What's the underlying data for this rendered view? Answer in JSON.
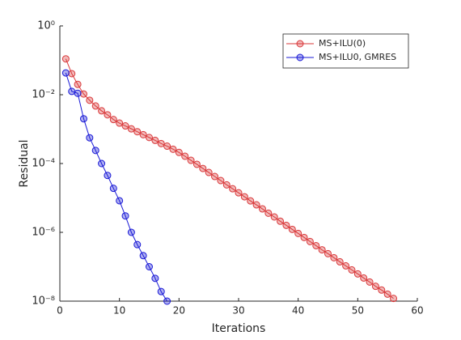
{
  "chart_data": {
    "type": "line",
    "xlabel": "Iterations",
    "ylabel": "Residual",
    "log_y": true,
    "xlim": [
      0,
      60
    ],
    "xticks": [
      0,
      10,
      20,
      30,
      40,
      50,
      60
    ],
    "ylim": [
      1e-08,
      1
    ],
    "yticks": [
      {
        "value": 1e-08,
        "label": "10⁻⁸"
      },
      {
        "value": 1e-06,
        "label": "10⁻⁶"
      },
      {
        "value": 0.0001,
        "label": "10⁻⁴"
      },
      {
        "value": 0.01,
        "label": "10⁻²"
      },
      {
        "value": 1,
        "label": "10⁰"
      }
    ],
    "legend": "northeast",
    "series": [
      {
        "name": "MS+ILU(0)",
        "color": "#d9383a",
        "x": [
          1,
          2,
          3,
          4,
          5,
          6,
          7,
          8,
          9,
          10,
          11,
          12,
          13,
          14,
          15,
          16,
          17,
          18,
          19,
          20,
          21,
          22,
          23,
          24,
          25,
          26,
          27,
          28,
          29,
          30,
          31,
          32,
          33,
          34,
          35,
          36,
          37,
          38,
          39,
          40,
          41,
          42,
          43,
          44,
          45,
          46,
          47,
          48,
          49,
          50,
          51,
          52,
          53,
          54,
          55,
          56
        ],
        "values": [
          0.11,
          0.041,
          0.02,
          0.0105,
          0.0069,
          0.0047,
          0.0034,
          0.0026,
          0.0019,
          0.0015,
          0.00124,
          0.00102,
          0.00084,
          0.00069,
          0.00057,
          0.00047,
          0.00038,
          0.00032,
          0.00026,
          0.00021,
          0.000163,
          0.000124,
          9.5e-05,
          7.2e-05,
          5.5e-05,
          4.2e-05,
          3.2e-05,
          2.4e-05,
          1.85e-05,
          1.41e-05,
          1.08e-05,
          8.2e-06,
          6.3e-06,
          4.8e-06,
          3.6e-06,
          2.8e-06,
          2.1e-06,
          1.6e-06,
          1.22e-06,
          9.3e-07,
          7.1e-07,
          5.4e-07,
          4.1e-07,
          3.1e-07,
          2.4e-07,
          1.83e-07,
          1.39e-07,
          1.06e-07,
          8.1e-08,
          6.2e-08,
          4.7e-08,
          3.6e-08,
          2.7e-08,
          2.1e-08,
          1.6e-08,
          1.2e-08
        ]
      },
      {
        "name": "MS+ILU0, GMRES",
        "color": "#1a1ad6",
        "x": [
          1,
          2,
          3,
          4,
          5,
          6,
          7,
          8,
          9,
          10,
          11,
          12,
          13,
          14,
          15,
          16,
          17,
          18
        ],
        "values": [
          0.043,
          0.0125,
          0.011,
          0.002,
          0.00056,
          0.00024,
          0.0001,
          4.5e-05,
          1.9e-05,
          8.3e-06,
          3e-06,
          1e-06,
          4.4e-07,
          2.1e-07,
          1e-07,
          4.6e-08,
          1.9e-08,
          1e-08
        ]
      }
    ]
  }
}
